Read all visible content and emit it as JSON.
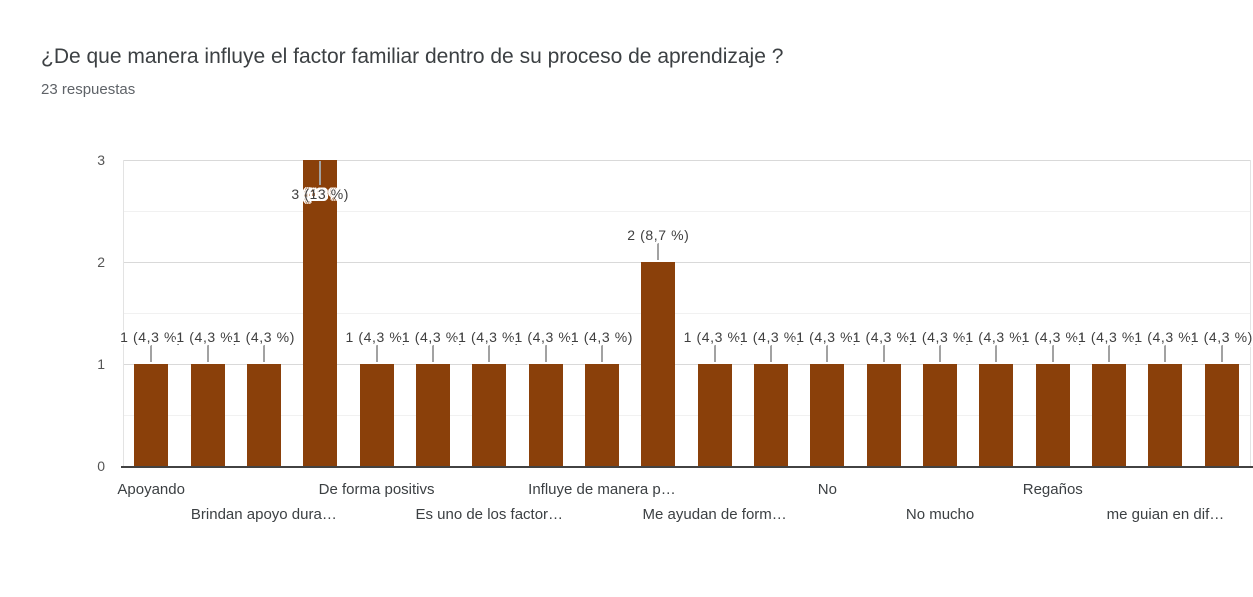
{
  "header": {
    "title": "¿De que manera influye el factor familiar dentro de su proceso de aprendizaje ?",
    "subtitle": "23 respuestas"
  },
  "chart_data": {
    "type": "bar",
    "title": "¿De que manera influye el factor familiar dentro de su proceso de aprendizaje ?",
    "subtitle": "23 respuestas",
    "total_responses": 23,
    "categories": [
      "Apoyando",
      "",
      "Brindan apoyo dura…",
      "",
      "De forma positivs",
      "",
      "Es uno de los factor…",
      "",
      "Influye de manera p…",
      "",
      "Me ayudan de form…",
      "",
      "No",
      "",
      "No mucho",
      "",
      "Regaños",
      "",
      "me guian en dif…",
      ""
    ],
    "category_label_rows": [
      1,
      0,
      2,
      0,
      1,
      0,
      2,
      0,
      1,
      0,
      2,
      0,
      1,
      0,
      2,
      0,
      1,
      0,
      2,
      0
    ],
    "values": [
      1,
      1,
      1,
      3,
      1,
      1,
      1,
      1,
      1,
      2,
      1,
      1,
      1,
      1,
      1,
      1,
      1,
      1,
      1,
      1
    ],
    "annotations": [
      "1 (4,3 %)",
      "1 (4,3 %)",
      "1 (4,3 %)",
      "3 (13 %)",
      "1 (4,3 %)",
      "1 (4,3 %)",
      "1 (4,3 %)",
      "1 (4,3 %)",
      "1 (4,3 %)",
      "2 (8,7 %)",
      "1 (4,3 %)",
      "1 (4,3 %)",
      "1 (4,3 %)",
      "1 (4,3 %)",
      "1 (4,3 %)",
      "1 (4,3 %)",
      "1 (4,3 %)",
      "1 (4,3 %)",
      "1 (4,3 %)",
      "1 (4,3 %)"
    ],
    "yticks": [
      "0",
      "1",
      "2",
      "3"
    ],
    "ylim": [
      0,
      3
    ],
    "grid": true,
    "legend": "none",
    "colors": {
      "bar": "#8A400A",
      "gridline_major": "#d9d9d9",
      "gridline_minor": "#f1f1f1",
      "baseline": "#424242",
      "annotation_text": "#3f3f3f",
      "axis_text": "#555555",
      "category_text": "#3c4043"
    }
  }
}
